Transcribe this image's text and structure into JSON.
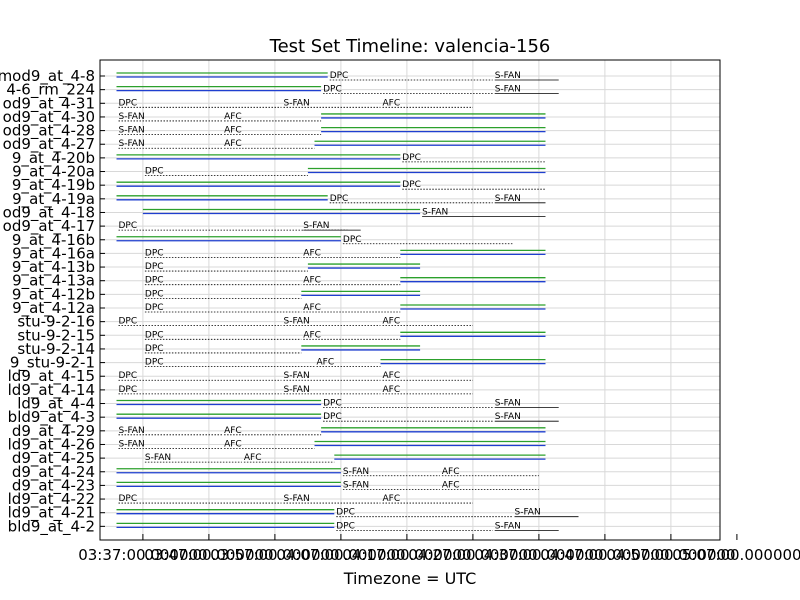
{
  "chart_data": {
    "type": "timeline",
    "title": "Test Set Timeline: valencia-156",
    "xlabel": "Timezone = UTC",
    "x_ticks": [
      "03:37:00.000000",
      "03:47:00.000000",
      "03:57:00.000000",
      "04:07:00.000000",
      "04:17:00.000000",
      "04:27:00.000000",
      "04:37:00.000000",
      "04:47:00.000000",
      "04:57:00.000000",
      "05:07:00.000000"
    ],
    "xlim": [
      "03:37:00",
      "05:07:00"
    ],
    "grid": true,
    "colors": {
      "top_line": "#2ca02c",
      "bottom_line": "#1f3fcf",
      "dotted": "#000000"
    },
    "rows": [
      {
        "label": "mod9_at_4-8",
        "solid": [
          [
            "03:33",
            "04:05"
          ]
        ],
        "segments": [
          {
            "text": "DPC",
            "start": "04:05",
            "end": "04:30"
          },
          {
            "text": "S-FAN",
            "start": "04:30",
            "end": "04:40"
          }
        ]
      },
      {
        "label": "4-6_rm_224",
        "solid": [
          [
            "03:33",
            "04:04"
          ]
        ],
        "segments": [
          {
            "text": "DPC",
            "start": "04:04",
            "end": "04:30"
          },
          {
            "text": "S-FAN",
            "start": "04:30",
            "end": "04:40"
          }
        ]
      },
      {
        "label": "od9_at_4-31",
        "solid": [],
        "segments": [
          {
            "text": "DPC",
            "start": "03:33",
            "end": "03:58"
          },
          {
            "text": "S-FAN",
            "start": "03:58",
            "end": "04:13"
          },
          {
            "text": "AFC",
            "start": "04:13",
            "end": "04:27"
          }
        ]
      },
      {
        "label": "od9_at_4-30",
        "solid": [
          [
            "04:04",
            "04:38"
          ]
        ],
        "segments": [
          {
            "text": "S-FAN",
            "start": "03:33",
            "end": "03:49"
          },
          {
            "text": "AFC",
            "start": "03:49",
            "end": "04:04"
          }
        ]
      },
      {
        "label": "od9_at_4-28",
        "solid": [
          [
            "04:04",
            "04:38"
          ]
        ],
        "segments": [
          {
            "text": "S-FAN",
            "start": "03:33",
            "end": "03:49"
          },
          {
            "text": "AFC",
            "start": "03:49",
            "end": "04:04"
          }
        ]
      },
      {
        "label": "od9_at_4-27",
        "solid": [
          [
            "04:03",
            "04:38"
          ]
        ],
        "segments": [
          {
            "text": "S-FAN",
            "start": "03:33",
            "end": "03:49"
          },
          {
            "text": "AFC",
            "start": "03:49",
            "end": "04:03"
          }
        ]
      },
      {
        "label": "9_at_4-20b",
        "solid": [
          [
            "03:33",
            "04:16"
          ]
        ],
        "segments": [
          {
            "text": "DPC",
            "start": "04:16",
            "end": "04:38"
          }
        ]
      },
      {
        "label": "9_at_4-20a",
        "solid": [
          [
            "04:02",
            "04:38"
          ]
        ],
        "segments": [
          {
            "text": "DPC",
            "start": "03:37",
            "end": "04:02"
          }
        ]
      },
      {
        "label": "9_at_4-19b",
        "solid": [
          [
            "03:33",
            "04:16"
          ]
        ],
        "segments": [
          {
            "text": "DPC",
            "start": "04:16",
            "end": "04:38"
          }
        ]
      },
      {
        "label": "9_at_4-19a",
        "solid": [
          [
            "03:33",
            "04:05"
          ]
        ],
        "segments": [
          {
            "text": "DPC",
            "start": "04:05",
            "end": "04:30"
          },
          {
            "text": "S-FAN",
            "start": "04:30",
            "end": "04:38"
          }
        ]
      },
      {
        "label": "od9_at_4-18",
        "solid": [
          [
            "03:37",
            "04:19"
          ]
        ],
        "segments": [
          {
            "text": "S-FAN",
            "start": "04:19",
            "end": "04:38"
          }
        ]
      },
      {
        "label": "od9_at_4-17",
        "solid": [],
        "segments": [
          {
            "text": "DPC",
            "start": "03:33",
            "end": "04:08"
          },
          {
            "text": "S-FAN",
            "start": "04:01",
            "end": "04:10"
          }
        ]
      },
      {
        "label": "9_at_4-16b",
        "solid": [
          [
            "03:33",
            "04:07"
          ]
        ],
        "segments": [
          {
            "text": "DPC",
            "start": "04:07",
            "end": "04:33"
          }
        ]
      },
      {
        "label": "9_at_4-16a",
        "solid": [
          [
            "04:16",
            "04:38"
          ]
        ],
        "segments": [
          {
            "text": "DPC",
            "start": "03:37",
            "end": "04:01"
          },
          {
            "text": "AFC",
            "start": "04:01",
            "end": "04:16"
          }
        ]
      },
      {
        "label": "9_at_4-13b",
        "solid": [
          [
            "04:02",
            "04:19"
          ]
        ],
        "segments": [
          {
            "text": "DPC",
            "start": "03:37",
            "end": "04:02"
          }
        ]
      },
      {
        "label": "9_at_4-13a",
        "solid": [
          [
            "04:16",
            "04:38"
          ]
        ],
        "segments": [
          {
            "text": "DPC",
            "start": "03:37",
            "end": "04:01"
          },
          {
            "text": "AFC",
            "start": "04:01",
            "end": "04:16"
          }
        ]
      },
      {
        "label": "9_at_4-12b",
        "solid": [
          [
            "04:01",
            "04:19"
          ]
        ],
        "segments": [
          {
            "text": "DPC",
            "start": "03:37",
            "end": "04:01"
          }
        ]
      },
      {
        "label": "9_at_4-12a",
        "solid": [
          [
            "04:16",
            "04:38"
          ]
        ],
        "segments": [
          {
            "text": "DPC",
            "start": "03:37",
            "end": "04:01"
          },
          {
            "text": "AFC",
            "start": "04:01",
            "end": "04:16"
          }
        ]
      },
      {
        "label": "stu-9-2-16",
        "solid": [],
        "segments": [
          {
            "text": "DPC",
            "start": "03:33",
            "end": "03:58"
          },
          {
            "text": "S-FAN",
            "start": "03:58",
            "end": "04:13"
          },
          {
            "text": "AFC",
            "start": "04:13",
            "end": "04:27"
          }
        ]
      },
      {
        "label": "stu-9-2-15",
        "solid": [
          [
            "04:16",
            "04:38"
          ]
        ],
        "segments": [
          {
            "text": "DPC",
            "start": "03:37",
            "end": "04:01"
          },
          {
            "text": "AFC",
            "start": "04:01",
            "end": "04:16"
          }
        ]
      },
      {
        "label": "stu-9-2-14",
        "solid": [
          [
            "04:01",
            "04:19"
          ]
        ],
        "segments": [
          {
            "text": "DPC",
            "start": "03:37",
            "end": "04:01"
          }
        ]
      },
      {
        "label": "9_stu-9-2-1",
        "solid": [
          [
            "04:13",
            "04:38"
          ]
        ],
        "segments": [
          {
            "text": "DPC",
            "start": "03:37",
            "end": "04:03"
          },
          {
            "text": "AFC",
            "start": "04:03",
            "end": "04:13"
          }
        ]
      },
      {
        "label": "ld9_at_4-15",
        "solid": [],
        "segments": [
          {
            "text": "DPC",
            "start": "03:33",
            "end": "03:58"
          },
          {
            "text": "S-FAN",
            "start": "03:58",
            "end": "04:13"
          },
          {
            "text": "AFC",
            "start": "04:13",
            "end": "04:27"
          }
        ]
      },
      {
        "label": "ld9_at_4-14",
        "solid": [],
        "segments": [
          {
            "text": "DPC",
            "start": "03:33",
            "end": "03:58"
          },
          {
            "text": "S-FAN",
            "start": "03:58",
            "end": "04:13"
          },
          {
            "text": "AFC",
            "start": "04:13",
            "end": "04:27"
          }
        ]
      },
      {
        "label": "ld9_at_4-4",
        "solid": [
          [
            "03:33",
            "04:04"
          ]
        ],
        "segments": [
          {
            "text": "DPC",
            "start": "04:04",
            "end": "04:30"
          },
          {
            "text": "S-FAN",
            "start": "04:30",
            "end": "04:40"
          }
        ]
      },
      {
        "label": "bld9_at_4-3",
        "solid": [
          [
            "03:33",
            "04:04"
          ]
        ],
        "segments": [
          {
            "text": "DPC",
            "start": "04:04",
            "end": "04:30"
          },
          {
            "text": "S-FAN",
            "start": "04:30",
            "end": "04:40"
          }
        ]
      },
      {
        "label": "d9_at_4-29",
        "solid": [
          [
            "04:04",
            "04:38"
          ]
        ],
        "segments": [
          {
            "text": "S-FAN",
            "start": "03:33",
            "end": "03:49"
          },
          {
            "text": "AFC",
            "start": "03:49",
            "end": "04:04"
          }
        ]
      },
      {
        "label": "ld9_at_4-26",
        "solid": [
          [
            "04:03",
            "04:38"
          ]
        ],
        "segments": [
          {
            "text": "S-FAN",
            "start": "03:33",
            "end": "03:49"
          },
          {
            "text": "AFC",
            "start": "03:49",
            "end": "04:03"
          }
        ]
      },
      {
        "label": "d9_at_4-25",
        "solid": [
          [
            "04:06",
            "04:38"
          ]
        ],
        "segments": [
          {
            "text": "S-FAN",
            "start": "03:37",
            "end": "03:52"
          },
          {
            "text": "AFC",
            "start": "03:52",
            "end": "04:06"
          }
        ]
      },
      {
        "label": "d9_at_4-24",
        "solid": [
          [
            "03:33",
            "04:07"
          ]
        ],
        "segments": [
          {
            "text": "S-FAN",
            "start": "04:07",
            "end": "04:22"
          },
          {
            "text": "AFC",
            "start": "04:22",
            "end": "04:37"
          }
        ]
      },
      {
        "label": "d9_at_4-23",
        "solid": [
          [
            "03:33",
            "04:07"
          ]
        ],
        "segments": [
          {
            "text": "S-FAN",
            "start": "04:07",
            "end": "04:22"
          },
          {
            "text": "AFC",
            "start": "04:22",
            "end": "04:37"
          }
        ]
      },
      {
        "label": "ld9_at_4-22",
        "solid": [],
        "segments": [
          {
            "text": "DPC",
            "start": "03:33",
            "end": "03:58"
          },
          {
            "text": "S-FAN",
            "start": "03:58",
            "end": "04:13"
          },
          {
            "text": "AFC",
            "start": "04:13",
            "end": "04:27"
          }
        ]
      },
      {
        "label": "ld9_at_4-21",
        "solid": [
          [
            "03:33",
            "04:06"
          ]
        ],
        "segments": [
          {
            "text": "DPC",
            "start": "04:06",
            "end": "04:33"
          },
          {
            "text": "S-FAN",
            "start": "04:33",
            "end": "04:43"
          }
        ]
      },
      {
        "label": "bld9_at_4-2",
        "solid": [
          [
            "03:33",
            "04:06"
          ]
        ],
        "segments": [
          {
            "text": "DPC",
            "start": "04:06",
            "end": "04:30"
          },
          {
            "text": "S-FAN",
            "start": "04:30",
            "end": "04:40"
          }
        ]
      }
    ]
  }
}
